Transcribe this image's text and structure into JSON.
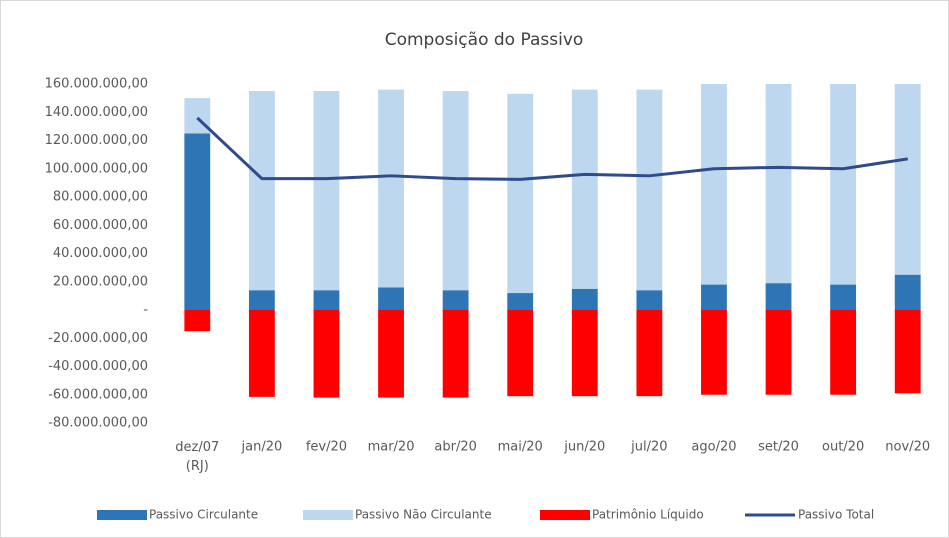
{
  "chart_data": {
    "type": "bar",
    "title": "Composição do Passivo",
    "categories": [
      "dez/07 (RJ)",
      "jan/20",
      "fev/20",
      "mar/20",
      "abr/20",
      "mai/20",
      "jun/20",
      "jul/20",
      "ago/20",
      "set/20",
      "out/20",
      "nov/20"
    ],
    "series": [
      {
        "name": "Passivo Circulante",
        "color": "#2e75b6",
        "type": "bar",
        "values": [
          125000000,
          14000000,
          14000000,
          16000000,
          14000000,
          12000000,
          15000000,
          14000000,
          18000000,
          19000000,
          18000000,
          25000000
        ]
      },
      {
        "name": "Passivo Não Circulante",
        "color": "#bdd7ee",
        "type": "bar",
        "values": [
          25000000,
          141000000,
          141000000,
          140000000,
          141000000,
          141000000,
          141000000,
          142000000,
          142000000,
          141000000,
          142000000,
          135000000
        ]
      },
      {
        "name": "Patrimônio Líquido",
        "color": "#ff0000",
        "type": "bar",
        "values": [
          -15000000,
          -61500000,
          -62000000,
          -62000000,
          -62000000,
          -61000000,
          -61000000,
          -61000000,
          -60000000,
          -60000000,
          -60000000,
          -59000000
        ]
      },
      {
        "name": "Passivo Total",
        "color": "#2f4b8c",
        "type": "line",
        "values": [
          136000000,
          93000000,
          93000000,
          95000000,
          93000000,
          92500000,
          96000000,
          95000000,
          100000000,
          101000000,
          100000000,
          107000000
        ]
      }
    ],
    "ylim": [
      -80000000,
      160000000
    ],
    "yticks": [
      {
        "value": -80000000,
        "label": "-80.000.000,00"
      },
      {
        "value": -60000000,
        "label": "-60.000.000,00"
      },
      {
        "value": -40000000,
        "label": "-40.000.000,00"
      },
      {
        "value": -20000000,
        "label": "-20.000.000,00"
      },
      {
        "value": 0,
        "label": "-"
      },
      {
        "value": 20000000,
        "label": "20.000.000,00"
      },
      {
        "value": 40000000,
        "label": "40.000.000,00"
      },
      {
        "value": 60000000,
        "label": "60.000.000,00"
      },
      {
        "value": 80000000,
        "label": "80.000.000,00"
      },
      {
        "value": 100000000,
        "label": "100.000.000,00"
      },
      {
        "value": 120000000,
        "label": "120.000.000,00"
      },
      {
        "value": 140000000,
        "label": "140.000.000,00"
      },
      {
        "value": 160000000,
        "label": "160.000.000,00"
      }
    ],
    "grid": false,
    "legend": "bottom"
  }
}
